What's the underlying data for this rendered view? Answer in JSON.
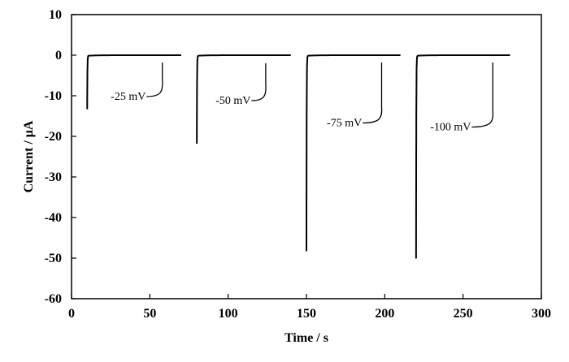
{
  "chart_data": {
    "type": "line",
    "xlabel": "Time / s",
    "ylabel": "Current / μA",
    "xlim": [
      0,
      300
    ],
    "ylim": [
      -60,
      10
    ],
    "xticks": [
      "0",
      "50",
      "100",
      "150",
      "200",
      "250",
      "300"
    ],
    "yticks": [
      "10",
      "0",
      "-10",
      "-20",
      "-30",
      "-40",
      "-50",
      "-60"
    ],
    "grid": false,
    "line_color": "#000000",
    "series": [
      {
        "label": "-25 mV",
        "start": 10,
        "end": 70,
        "peak": -13.0,
        "label_at": [
          25,
          -11
        ],
        "leader_to": [
          58,
          -1.8
        ]
      },
      {
        "label": "-50 mV",
        "start": 80,
        "end": 140,
        "peak": -21.5,
        "label_at": [
          92,
          -12
        ],
        "leader_to": [
          124,
          -2.0
        ]
      },
      {
        "label": "-75 mV",
        "start": 150,
        "end": 210,
        "peak": -48.0,
        "label_at": [
          163,
          -17.5
        ],
        "leader_to": [
          198,
          -1.8
        ]
      },
      {
        "label": "-100 mV",
        "start": 220,
        "end": 280,
        "peak": -49.8,
        "label_at": [
          229,
          -18.5
        ],
        "leader_to": [
          269,
          -1.8
        ]
      }
    ]
  }
}
